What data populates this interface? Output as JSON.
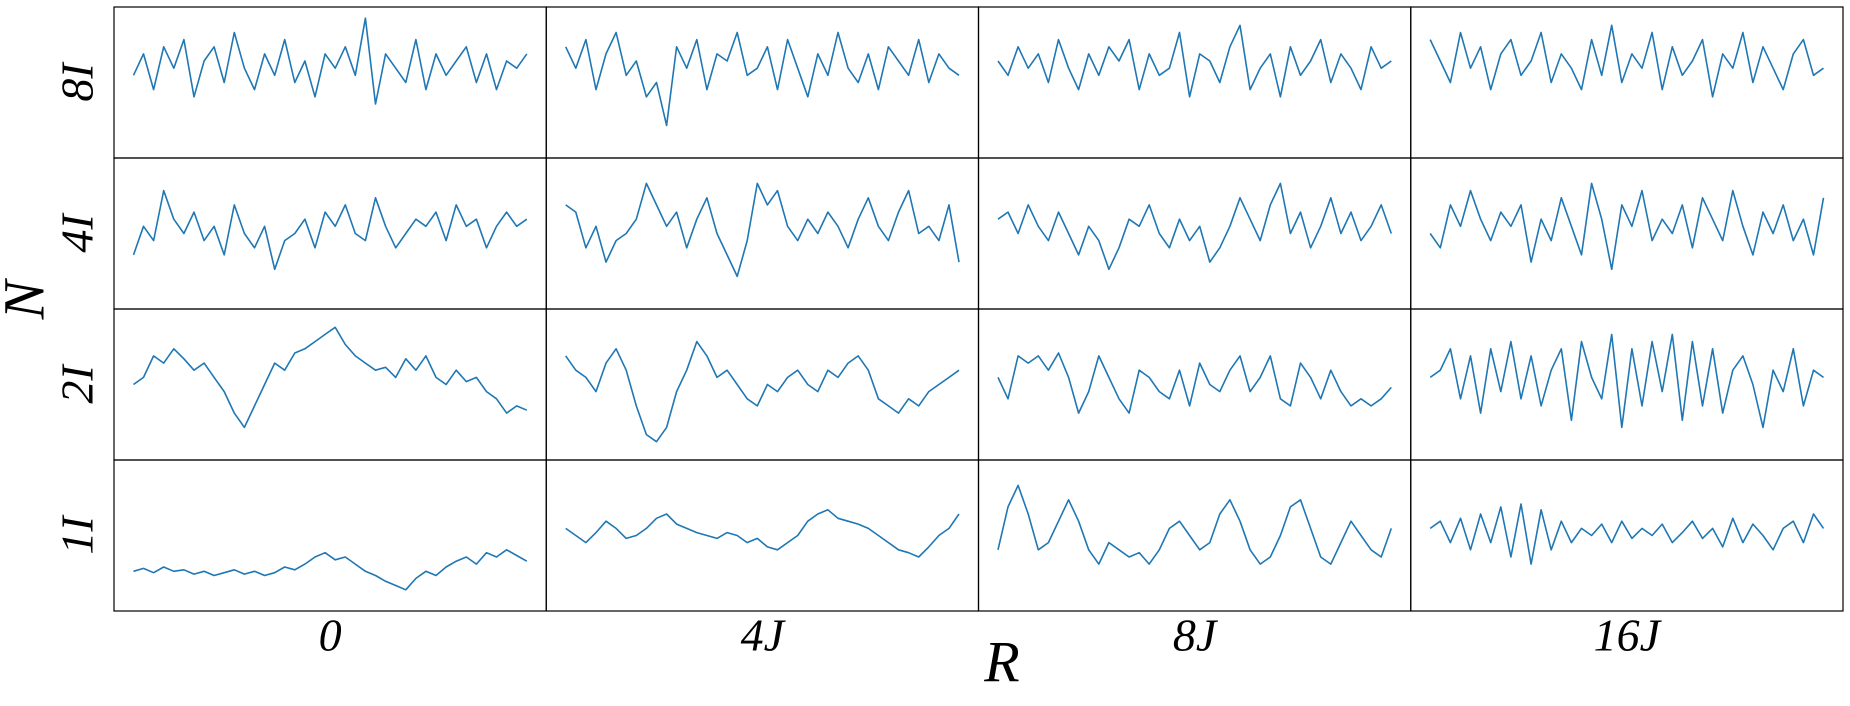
{
  "chart_data": {
    "type": "line",
    "color": "#1f77b4",
    "xlabel": "R",
    "ylabel": "N",
    "rows": [
      "8I",
      "4I",
      "2I",
      "1I"
    ],
    "columns": [
      "0",
      "4J",
      "8J",
      "16J"
    ],
    "ylim": [
      0,
      100
    ],
    "panels": [
      [
        [
          55,
          70,
          45,
          75,
          60,
          80,
          40,
          65,
          75,
          50,
          85,
          60,
          45,
          70,
          55,
          80,
          50,
          65,
          40,
          70,
          60,
          75,
          55,
          95,
          35,
          70,
          60,
          50,
          80,
          45,
          70,
          55,
          65,
          75,
          50,
          70,
          45,
          65,
          60,
          70
        ],
        [
          75,
          60,
          80,
          45,
          70,
          85,
          55,
          65,
          40,
          50,
          20,
          75,
          60,
          80,
          45,
          70,
          65,
          85,
          55,
          60,
          75,
          45,
          80,
          60,
          40,
          70,
          55,
          85,
          60,
          50,
          70,
          45,
          75,
          65,
          55,
          80,
          50,
          70,
          60,
          55
        ],
        [
          65,
          55,
          75,
          60,
          70,
          50,
          80,
          60,
          45,
          70,
          55,
          75,
          65,
          80,
          45,
          70,
          55,
          60,
          85,
          40,
          70,
          65,
          50,
          75,
          90,
          45,
          60,
          70,
          40,
          75,
          55,
          65,
          80,
          50,
          70,
          60,
          45,
          75,
          60,
          65
        ],
        [
          80,
          65,
          50,
          85,
          60,
          75,
          45,
          70,
          80,
          55,
          65,
          85,
          50,
          70,
          60,
          45,
          80,
          55,
          90,
          50,
          70,
          60,
          85,
          45,
          75,
          55,
          65,
          80,
          40,
          70,
          60,
          85,
          50,
          75,
          60,
          45,
          70,
          80,
          55,
          60
        ]
      ],
      [
        [
          35,
          55,
          45,
          80,
          60,
          50,
          65,
          45,
          55,
          35,
          70,
          50,
          40,
          55,
          25,
          45,
          50,
          60,
          40,
          65,
          55,
          70,
          50,
          45,
          75,
          55,
          40,
          50,
          60,
          55,
          65,
          45,
          70,
          55,
          60,
          40,
          55,
          65,
          55,
          60
        ],
        [
          70,
          65,
          40,
          55,
          30,
          45,
          50,
          60,
          85,
          70,
          55,
          65,
          40,
          60,
          75,
          50,
          35,
          20,
          45,
          85,
          70,
          80,
          55,
          45,
          60,
          50,
          65,
          55,
          40,
          60,
          75,
          55,
          45,
          65,
          80,
          50,
          55,
          45,
          70,
          30
        ],
        [
          60,
          65,
          50,
          70,
          55,
          45,
          65,
          50,
          35,
          55,
          45,
          25,
          40,
          60,
          55,
          70,
          50,
          40,
          60,
          45,
          55,
          30,
          40,
          55,
          75,
          60,
          45,
          70,
          85,
          50,
          65,
          40,
          55,
          75,
          50,
          65,
          45,
          55,
          70,
          50
        ],
        [
          50,
          40,
          70,
          55,
          80,
          60,
          45,
          65,
          55,
          70,
          30,
          60,
          45,
          75,
          55,
          35,
          85,
          60,
          25,
          70,
          55,
          80,
          45,
          60,
          50,
          70,
          40,
          75,
          60,
          45,
          80,
          55,
          35,
          65,
          50,
          70,
          45,
          60,
          35,
          75
        ]
      ],
      [
        [
          50,
          55,
          70,
          65,
          75,
          68,
          60,
          65,
          55,
          45,
          30,
          20,
          35,
          50,
          65,
          60,
          72,
          75,
          80,
          85,
          90,
          78,
          70,
          65,
          60,
          62,
          55,
          68,
          60,
          70,
          55,
          50,
          60,
          52,
          55,
          45,
          40,
          30,
          35,
          32
        ],
        [
          70,
          60,
          55,
          45,
          65,
          75,
          60,
          35,
          15,
          10,
          20,
          45,
          60,
          80,
          70,
          55,
          60,
          50,
          40,
          35,
          50,
          45,
          55,
          60,
          50,
          45,
          60,
          55,
          65,
          70,
          60,
          40,
          35,
          30,
          40,
          35,
          45,
          50,
          55,
          60
        ],
        [
          55,
          40,
          70,
          65,
          70,
          60,
          72,
          55,
          30,
          45,
          70,
          55,
          40,
          30,
          60,
          55,
          45,
          40,
          60,
          35,
          65,
          50,
          45,
          60,
          70,
          45,
          55,
          70,
          40,
          35,
          65,
          55,
          40,
          60,
          45,
          35,
          40,
          35,
          40,
          48
        ],
        [
          55,
          60,
          75,
          40,
          70,
          30,
          75,
          45,
          80,
          40,
          70,
          35,
          60,
          75,
          25,
          80,
          55,
          40,
          85,
          20,
          75,
          35,
          80,
          45,
          85,
          25,
          80,
          35,
          75,
          30,
          60,
          70,
          50,
          20,
          60,
          45,
          75,
          35,
          60,
          55
        ]
      ],
      [
        [
          25,
          27,
          24,
          28,
          25,
          26,
          23,
          25,
          22,
          24,
          26,
          23,
          25,
          22,
          24,
          28,
          26,
          30,
          35,
          38,
          33,
          35,
          30,
          25,
          22,
          18,
          15,
          12,
          20,
          25,
          22,
          28,
          32,
          35,
          30,
          38,
          35,
          40,
          36,
          32
        ],
        [
          55,
          50,
          45,
          52,
          60,
          55,
          48,
          50,
          55,
          62,
          65,
          58,
          55,
          52,
          50,
          48,
          52,
          50,
          45,
          48,
          42,
          40,
          45,
          50,
          60,
          65,
          68,
          62,
          60,
          58,
          55,
          50,
          45,
          40,
          38,
          35,
          42,
          50,
          55,
          65
        ],
        [
          40,
          70,
          85,
          65,
          40,
          45,
          60,
          75,
          60,
          40,
          30,
          45,
          40,
          35,
          38,
          30,
          40,
          55,
          60,
          50,
          40,
          45,
          65,
          75,
          60,
          40,
          30,
          35,
          50,
          70,
          75,
          55,
          35,
          30,
          45,
          60,
          50,
          40,
          35,
          55
        ],
        [
          55,
          60,
          45,
          62,
          40,
          65,
          45,
          70,
          35,
          72,
          30,
          68,
          40,
          60,
          45,
          55,
          50,
          58,
          45,
          60,
          48,
          55,
          50,
          58,
          45,
          52,
          60,
          48,
          55,
          42,
          62,
          45,
          58,
          50,
          40,
          55,
          60,
          45,
          65,
          55
        ]
      ]
    ]
  }
}
